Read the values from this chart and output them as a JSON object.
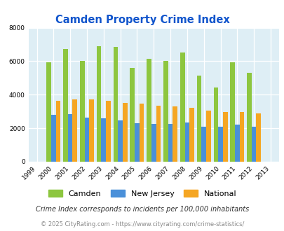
{
  "title": "Camden Property Crime Index",
  "years": [
    1999,
    2000,
    2001,
    2002,
    2003,
    2004,
    2005,
    2006,
    2007,
    2008,
    2009,
    2010,
    2011,
    2012,
    2013
  ],
  "camden": [
    null,
    5950,
    6750,
    6000,
    6900,
    6850,
    5600,
    6150,
    6000,
    6500,
    5150,
    4450,
    5950,
    5300,
    null
  ],
  "new_jersey": [
    null,
    2800,
    2850,
    2650,
    2600,
    2450,
    2300,
    2250,
    2250,
    2350,
    2100,
    2100,
    2200,
    2100,
    null
  ],
  "national": [
    null,
    3650,
    3700,
    3700,
    3650,
    3500,
    3450,
    3350,
    3300,
    3200,
    3050,
    2980,
    2950,
    2900,
    null
  ],
  "camden_color": "#8dc63f",
  "nj_color": "#4a90d9",
  "national_color": "#f5a623",
  "bg_color": "#deeef5",
  "ylim": [
    0,
    8000
  ],
  "yticks": [
    0,
    2000,
    4000,
    6000,
    8000
  ],
  "legend_labels": [
    "Camden",
    "New Jersey",
    "National"
  ],
  "footnote1": "Crime Index corresponds to incidents per 100,000 inhabitants",
  "footnote2": "© 2025 CityRating.com - https://www.cityrating.com/crime-statistics/",
  "title_color": "#1155cc",
  "footnote1_color": "#333333",
  "footnote2_color": "#888888"
}
